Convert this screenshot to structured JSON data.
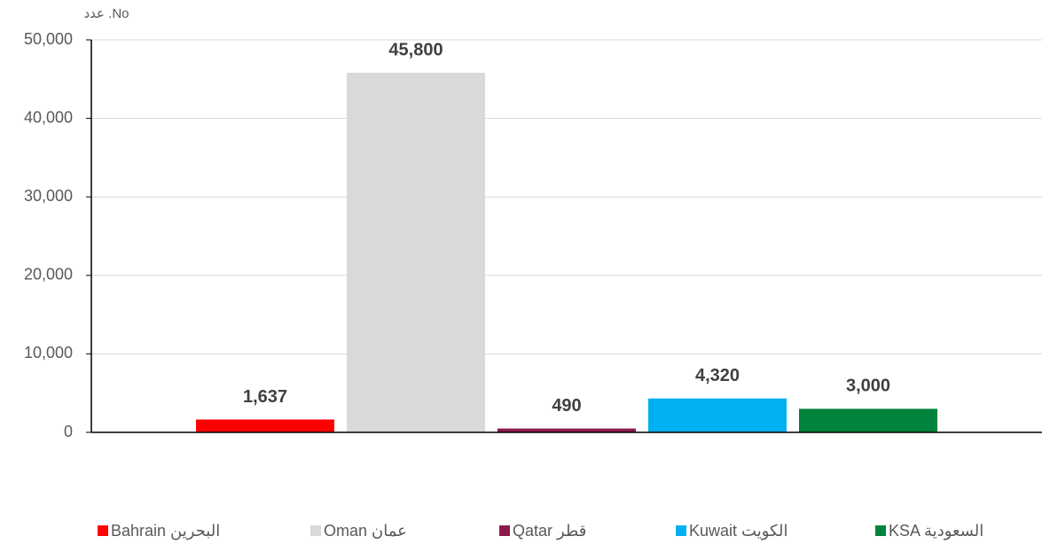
{
  "chart_data": {
    "type": "bar",
    "y_axis_label": "عدد .No",
    "categories": [
      null
    ],
    "series": [
      {
        "name": "Bahrain البحرين",
        "color": "#ff0000",
        "values": [
          1637
        ],
        "value_labels": [
          "1,637"
        ]
      },
      {
        "name": "Oman عمان",
        "color": "#d9d9d9",
        "values": [
          45800
        ],
        "value_labels": [
          "45,800"
        ]
      },
      {
        "name": "Qatar قطر",
        "color": "#8b1a4a",
        "values": [
          490
        ],
        "value_labels": [
          "490"
        ]
      },
      {
        "name": "Kuwait الكويت",
        "color": "#00b0f0",
        "values": [
          4320
        ],
        "value_labels": [
          "4,320"
        ]
      },
      {
        "name": "KSA السعودية",
        "color": "#00843d",
        "values": [
          3000
        ],
        "value_labels": [
          "3,000"
        ]
      }
    ],
    "ylim": [
      0,
      50000
    ],
    "yticks": [
      {
        "value": 0,
        "label": "0"
      },
      {
        "value": 10000,
        "label": "10,000"
      },
      {
        "value": 20000,
        "label": "20,000"
      },
      {
        "value": 30000,
        "label": "30,000"
      },
      {
        "value": 40000,
        "label": "40,000"
      },
      {
        "value": 50000,
        "label": "50,000"
      }
    ],
    "grid": true,
    "legend": "bottom"
  }
}
